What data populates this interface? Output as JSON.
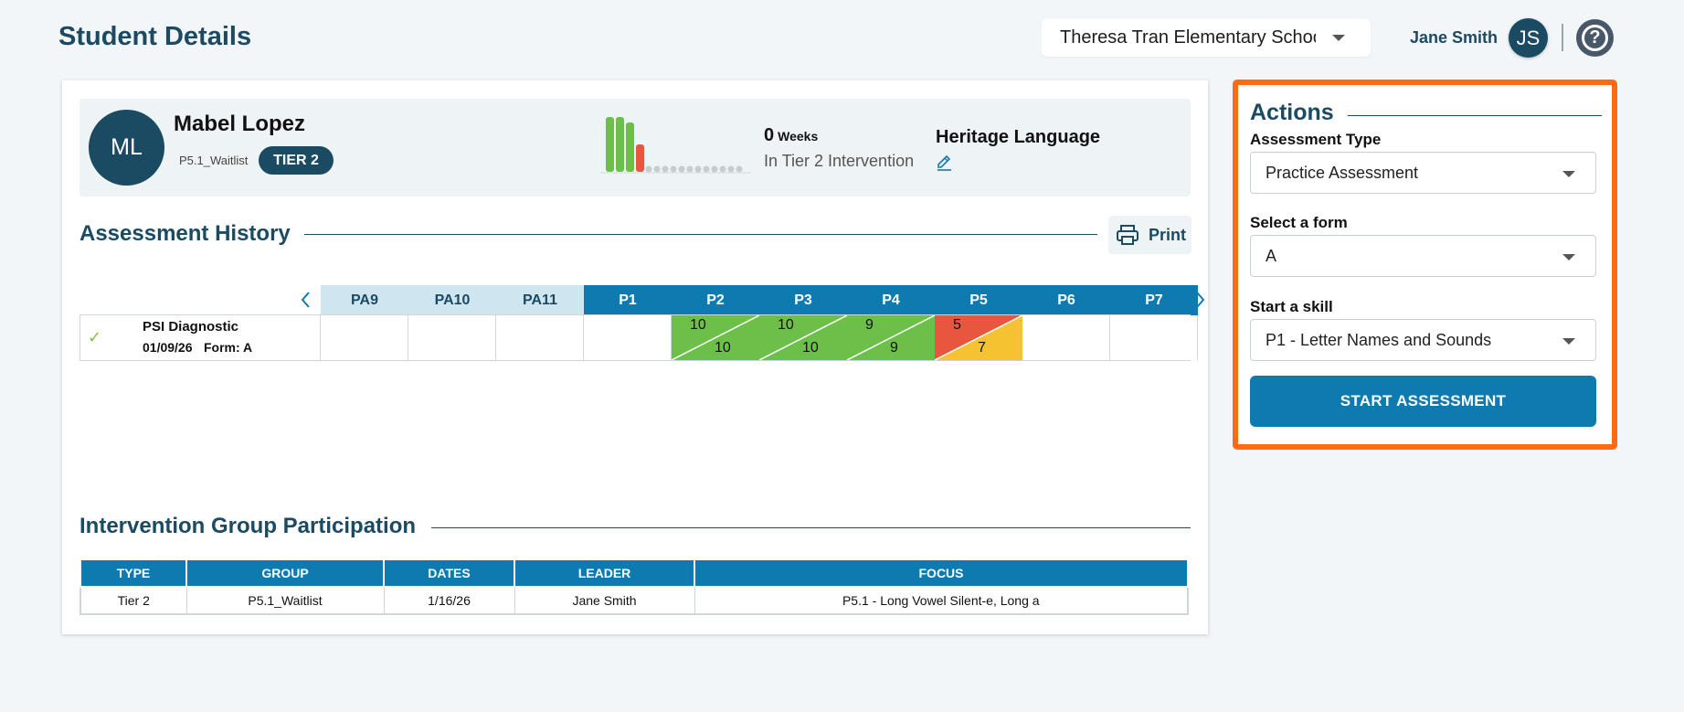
{
  "header": {
    "title": "Student Details",
    "school": "Theresa Tran Elementary School",
    "user_name": "Jane Smith",
    "user_initials": "JS",
    "help_glyph": "?"
  },
  "student": {
    "initials": "ML",
    "name": "Mabel Lopez",
    "group": "P5.1_Waitlist",
    "tier": "TIER 2",
    "weeks_value": "0",
    "weeks_unit": "Weeks",
    "weeks_subtitle": "In Tier 2 Intervention",
    "language_label": "Heritage Language",
    "progress_bars": [
      {
        "level": 1.0,
        "color": "#6cc04a"
      },
      {
        "level": 1.0,
        "color": "#6cc04a"
      },
      {
        "level": 0.9,
        "color": "#6cc04a"
      },
      {
        "level": 0.5,
        "color": "#e8563f"
      }
    ],
    "empty_slots": 12
  },
  "assessment_history": {
    "title": "Assessment History",
    "print_label": "Print",
    "columns": [
      "PA9",
      "PA10",
      "PA11",
      "P1",
      "P2",
      "P3",
      "P4",
      "P5",
      "P6",
      "P7"
    ],
    "row": {
      "name": "PSI Diagnostic",
      "date": "01/09/26",
      "form": "Form: A",
      "scores": [
        {
          "column": "P2",
          "top": "10",
          "bottom": "10",
          "top_color": "#6cc04a",
          "bottom_color": "#6cc04a"
        },
        {
          "column": "P3",
          "top": "10",
          "bottom": "10",
          "top_color": "#6cc04a",
          "bottom_color": "#6cc04a"
        },
        {
          "column": "P4",
          "top": "9",
          "bottom": "9",
          "top_color": "#6cc04a",
          "bottom_color": "#6cc04a"
        },
        {
          "column": "P5",
          "top": "5",
          "bottom": "7",
          "top_color": "#e8563f",
          "bottom_color": "#f5c231"
        }
      ]
    }
  },
  "intervention": {
    "title": "Intervention Group Participation",
    "headers": [
      "TYPE",
      "GROUP",
      "DATES",
      "LEADER",
      "FOCUS"
    ],
    "rows": [
      [
        "Tier 2",
        "P5.1_Waitlist",
        "1/16/26",
        "Jane Smith",
        "P5.1 - Long Vowel Silent-e, Long a"
      ]
    ]
  },
  "actions": {
    "title": "Actions",
    "assessment_type_label": "Assessment Type",
    "assessment_type_value": "Practice Assessment",
    "form_label": "Select a form",
    "form_value": "A",
    "skill_label": "Start a skill",
    "skill_value": "P1 - Letter Names and Sounds",
    "start_button": "START ASSESSMENT",
    "highlight_color": "#ff6b12"
  }
}
